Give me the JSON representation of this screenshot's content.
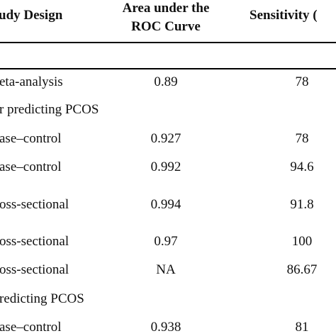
{
  "table": {
    "headers": {
      "study_design": "udy Design",
      "auc_line1": "Area under the",
      "auc_line2": "ROC Curve",
      "sensitivity": "Sensitivity ("
    },
    "section_headers": [
      "r predicting PCOS",
      "redicting PCOS"
    ],
    "rows": [
      {
        "design": "eta-analysis",
        "auc": "0.89",
        "sensitivity": "78"
      },
      {
        "design": "ase–control",
        "auc": "0.927",
        "sensitivity": "78"
      },
      {
        "design": "ase–control",
        "auc": "0.992",
        "sensitivity": "94.6"
      },
      {
        "design": "oss-sectional",
        "auc": "0.994",
        "sensitivity": "91.8"
      },
      {
        "design": "oss-sectional",
        "auc": "0.97",
        "sensitivity": "100"
      },
      {
        "design": "oss-sectional",
        "auc": "NA",
        "sensitivity": "86.67"
      },
      {
        "design": "ase–control",
        "auc": "0.938",
        "sensitivity": "81"
      }
    ]
  }
}
